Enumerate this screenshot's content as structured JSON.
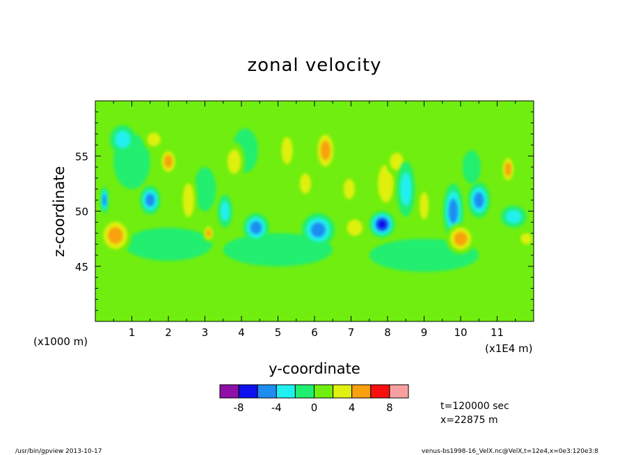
{
  "chart_data": {
    "type": "heatmap",
    "title": "zonal velocity",
    "xlabel": "y-coordinate",
    "ylabel": "z-coordinate",
    "x_scale_note_left": "(x1000 m)",
    "x_scale_note_right": "(x1E4 m)",
    "x_ticks": [
      "1",
      "2",
      "3",
      "4",
      "5",
      "6",
      "7",
      "8",
      "9",
      "10",
      "11"
    ],
    "x_tick_values": [
      1,
      2,
      3,
      4,
      5,
      6,
      7,
      8,
      9,
      10,
      11
    ],
    "xlim": [
      0,
      12
    ],
    "y_ticks": [
      "45",
      "50",
      "55"
    ],
    "y_tick_values": [
      45,
      50,
      55
    ],
    "ylim": [
      40,
      60
    ],
    "colorbar": {
      "levels": [
        -10,
        -8,
        -6,
        -4,
        -2,
        0,
        2,
        4,
        6,
        8,
        10
      ],
      "tick_labels": [
        "-8",
        "-4",
        "0",
        "4",
        "8"
      ],
      "tick_values": [
        -8,
        -4,
        0,
        4,
        8
      ],
      "colors": [
        "#8e10a8",
        "#1010ee",
        "#1e8cf0",
        "#20f0f0",
        "#20ee70",
        "#70ee10",
        "#e0f010",
        "#f8a010",
        "#f81010",
        "#f8a0a0"
      ]
    },
    "background_color": "#70ee10",
    "features": [
      {
        "y": 0.25,
        "z": 51.0,
        "ry": 0.12,
        "rz": 1.2,
        "value": -6
      },
      {
        "y": 0.55,
        "z": 47.8,
        "ry": 0.45,
        "rz": 1.7,
        "value": 5
      },
      {
        "y": 0.75,
        "z": 56.5,
        "ry": 0.35,
        "rz": 1.3,
        "value": -3
      },
      {
        "y": 1.0,
        "z": 54.5,
        "ry": 0.5,
        "rz": 2.5,
        "value": -1
      },
      {
        "y": 1.5,
        "z": 51.0,
        "ry": 0.28,
        "rz": 1.3,
        "value": -5
      },
      {
        "y": 1.6,
        "z": 56.5,
        "ry": 0.3,
        "rz": 1.0,
        "value": 3
      },
      {
        "y": 2.0,
        "z": 54.5,
        "ry": 0.25,
        "rz": 1.3,
        "value": 5
      },
      {
        "y": 2.55,
        "z": 51.0,
        "ry": 0.25,
        "rz": 2.5,
        "value": 3
      },
      {
        "y": 3.0,
        "z": 52.0,
        "ry": 0.3,
        "rz": 2.0,
        "value": -1
      },
      {
        "y": 3.1,
        "z": 48.0,
        "ry": 0.15,
        "rz": 0.8,
        "value": 5
      },
      {
        "y": 3.55,
        "z": 50.0,
        "ry": 0.2,
        "rz": 1.5,
        "value": -3
      },
      {
        "y": 3.8,
        "z": 54.5,
        "ry": 0.3,
        "rz": 1.8,
        "value": 3
      },
      {
        "y": 4.4,
        "z": 48.5,
        "ry": 0.35,
        "rz": 1.3,
        "value": -5
      },
      {
        "y": 4.1,
        "z": 55.5,
        "ry": 0.35,
        "rz": 2.0,
        "value": -1
      },
      {
        "y": 5.25,
        "z": 55.5,
        "ry": 0.25,
        "rz": 2.0,
        "value": 3
      },
      {
        "y": 5.75,
        "z": 52.5,
        "ry": 0.25,
        "rz": 1.5,
        "value": 3
      },
      {
        "y": 6.1,
        "z": 48.3,
        "ry": 0.45,
        "rz": 1.5,
        "value": -5
      },
      {
        "y": 6.3,
        "z": 55.5,
        "ry": 0.3,
        "rz": 2.0,
        "value": 5
      },
      {
        "y": 6.95,
        "z": 52.0,
        "ry": 0.25,
        "rz": 1.5,
        "value": 3
      },
      {
        "y": 7.1,
        "z": 48.5,
        "ry": 0.35,
        "rz": 1.2,
        "value": 3
      },
      {
        "y": 7.85,
        "z": 48.8,
        "ry": 0.35,
        "rz": 1.2,
        "value": -7
      },
      {
        "y": 7.95,
        "z": 52.5,
        "ry": 0.35,
        "rz": 2.8,
        "value": 3
      },
      {
        "y": 8.25,
        "z": 54.5,
        "ry": 0.3,
        "rz": 1.3,
        "value": 3
      },
      {
        "y": 8.5,
        "z": 52.0,
        "ry": 0.25,
        "rz": 2.5,
        "value": -3
      },
      {
        "y": 9.0,
        "z": 50.5,
        "ry": 0.2,
        "rz": 2.0,
        "value": 3
      },
      {
        "y": 9.8,
        "z": 50.0,
        "ry": 0.28,
        "rz": 2.5,
        "value": -5
      },
      {
        "y": 10.0,
        "z": 47.5,
        "ry": 0.4,
        "rz": 1.4,
        "value": 5
      },
      {
        "y": 10.3,
        "z": 54.0,
        "ry": 0.25,
        "rz": 1.5,
        "value": -1
      },
      {
        "y": 10.5,
        "z": 51.0,
        "ry": 0.3,
        "rz": 1.6,
        "value": -5
      },
      {
        "y": 11.3,
        "z": 53.8,
        "ry": 0.2,
        "rz": 1.4,
        "value": 5
      },
      {
        "y": 11.45,
        "z": 49.5,
        "ry": 0.35,
        "rz": 1.0,
        "value": -3
      },
      {
        "y": 11.8,
        "z": 47.5,
        "ry": 0.25,
        "rz": 0.8,
        "value": 3
      },
      {
        "y": 2.0,
        "z": 47.0,
        "ry": 1.2,
        "rz": 1.5,
        "value": -1
      },
      {
        "y": 5.0,
        "z": 46.5,
        "ry": 1.5,
        "rz": 1.5,
        "value": -1
      },
      {
        "y": 9.0,
        "z": 46.0,
        "ry": 1.5,
        "rz": 1.5,
        "value": -1
      }
    ]
  },
  "annotations": {
    "time": "t=120000 sec",
    "position": "x=22875 m"
  },
  "footer": {
    "left": "/usr/bin/gpview  2013-10-17",
    "right": "venus-bs1998-16_VelX.nc@VelX,t=12e4,x=0e3:120e3:8"
  }
}
